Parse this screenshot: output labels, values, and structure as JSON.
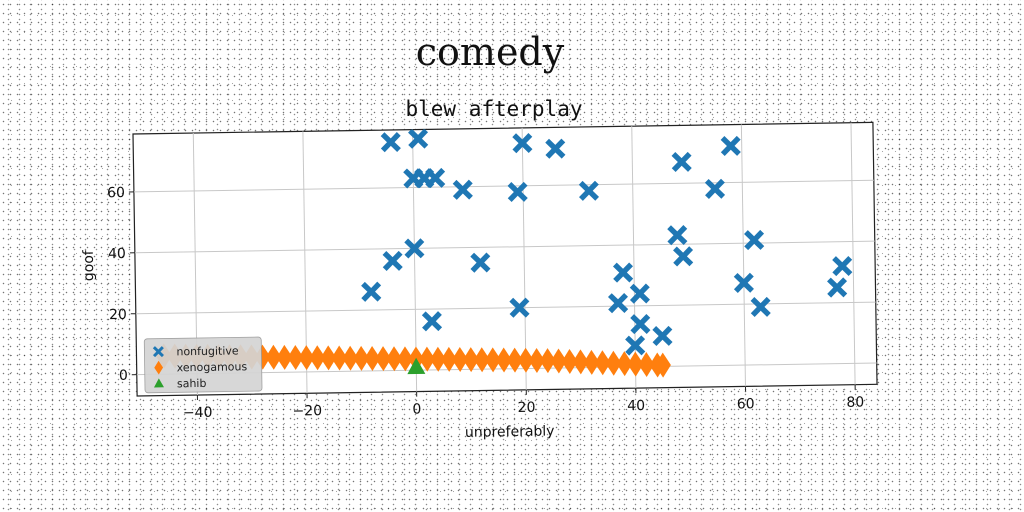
{
  "suptitle": "comedy",
  "chart_data": {
    "type": "scatter",
    "title": "blew afterplay",
    "xlabel": "unpreferably",
    "ylabel": "goof",
    "xlim": [
      -51,
      84
    ],
    "ylim": [
      -7,
      79
    ],
    "xticks": [
      -40,
      -20,
      0,
      20,
      40,
      60,
      80
    ],
    "yticks": [
      0,
      20,
      40,
      60
    ],
    "grid": true,
    "legend_position": "lower-left",
    "series": [
      {
        "name": "nonfugitive",
        "marker": "X",
        "color": "#1f77b4",
        "points": [
          [
            -4,
            75
          ],
          [
            1,
            76
          ],
          [
            0,
            63
          ],
          [
            2,
            63
          ],
          [
            4,
            63
          ],
          [
            9,
            59
          ],
          [
            20,
            74
          ],
          [
            26,
            72
          ],
          [
            19,
            58
          ],
          [
            32,
            58
          ],
          [
            49,
            67
          ],
          [
            55,
            58
          ],
          [
            58,
            72
          ],
          [
            -4,
            36
          ],
          [
            0,
            40
          ],
          [
            12,
            35
          ],
          [
            -8,
            26
          ],
          [
            3,
            16
          ],
          [
            19,
            20
          ],
          [
            38,
            31
          ],
          [
            37,
            21
          ],
          [
            41,
            24
          ],
          [
            41,
            14
          ],
          [
            40,
            7
          ],
          [
            45,
            10
          ],
          [
            48,
            43
          ],
          [
            49,
            36
          ],
          [
            62,
            41
          ],
          [
            60,
            27
          ],
          [
            63,
            19
          ],
          [
            77,
            25
          ],
          [
            78,
            32
          ]
        ]
      },
      {
        "name": "xenogamous",
        "marker": "d",
        "color": "#ff7f0e",
        "points": [
          [
            -46,
            6.0
          ],
          [
            -44,
            5.9
          ],
          [
            -42,
            5.8
          ],
          [
            -40,
            5.7
          ],
          [
            -38,
            5.6
          ],
          [
            -36,
            5.5
          ],
          [
            -34,
            5.4
          ],
          [
            -32,
            5.3
          ],
          [
            -30,
            5.2
          ],
          [
            -28,
            5.1
          ],
          [
            -26,
            5.0
          ],
          [
            -24,
            4.9
          ],
          [
            -22,
            4.8
          ],
          [
            -20,
            4.7
          ],
          [
            -18,
            4.6
          ],
          [
            -16,
            4.5
          ],
          [
            -14,
            4.4
          ],
          [
            -12,
            4.3
          ],
          [
            -10,
            4.2
          ],
          [
            -8,
            4.1
          ],
          [
            -6,
            4.0
          ],
          [
            -4,
            3.9
          ],
          [
            -2,
            3.8
          ],
          [
            0,
            3.7
          ],
          [
            2,
            3.6
          ],
          [
            4,
            3.5
          ],
          [
            6,
            3.4
          ],
          [
            8,
            3.3
          ],
          [
            10,
            3.2
          ],
          [
            12,
            3.1
          ],
          [
            14,
            3.0
          ],
          [
            16,
            2.9
          ],
          [
            18,
            2.8
          ],
          [
            20,
            2.7
          ],
          [
            22,
            2.6
          ],
          [
            24,
            2.5
          ],
          [
            26,
            2.3
          ],
          [
            28,
            2.1
          ],
          [
            30,
            1.9
          ],
          [
            32,
            1.7
          ],
          [
            34,
            1.5
          ],
          [
            36,
            1.3
          ],
          [
            38,
            1.1
          ],
          [
            40,
            0.9
          ],
          [
            42,
            0.7
          ],
          [
            44,
            0.5
          ],
          [
            45,
            0.4
          ]
        ]
      },
      {
        "name": "sahib",
        "marker": "^",
        "color": "#2ca02c",
        "points": [
          [
            0,
            1
          ]
        ]
      }
    ]
  }
}
